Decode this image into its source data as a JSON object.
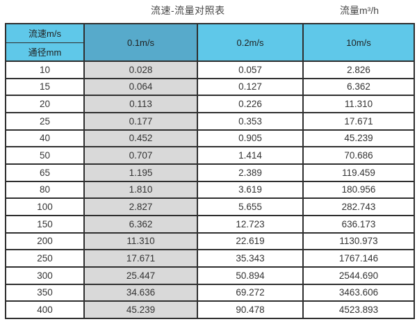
{
  "header": {
    "table_title": "流速-流量对照表",
    "unit_label": "流量m³/h"
  },
  "table": {
    "corner_top": "流速m/s",
    "corner_bottom": "通径mm",
    "columns": [
      "0.1m/s",
      "0.2m/s",
      "10m/s"
    ],
    "rows": [
      [
        "10",
        "0.028",
        "0.057",
        "2.826"
      ],
      [
        "15",
        "0.064",
        "0.127",
        "6.362"
      ],
      [
        "20",
        "0.113",
        "0.226",
        "11.310"
      ],
      [
        "25",
        "0.177",
        "0.353",
        "17.671"
      ],
      [
        "40",
        "0.452",
        "0.905",
        "45.239"
      ],
      [
        "50",
        "0.707",
        "1.414",
        "70.686"
      ],
      [
        "65",
        "1.195",
        "2.389",
        "119.459"
      ],
      [
        "80",
        "1.810",
        "3.619",
        "180.956"
      ],
      [
        "100",
        "2.827",
        "5.655",
        "282.743"
      ],
      [
        "150",
        "6.362",
        "12.723",
        "636.173"
      ],
      [
        "200",
        "11.310",
        "22.619",
        "1130.973"
      ],
      [
        "250",
        "17.671",
        "35.343",
        "1767.146"
      ],
      [
        "300",
        "25.447",
        "50.894",
        "2544.690"
      ],
      [
        "350",
        "34.636",
        "69.272",
        "3463.606"
      ],
      [
        "400",
        "45.239",
        "90.478",
        "4523.893"
      ]
    ]
  },
  "colors": {
    "header_blue": "#5fc8e9",
    "header_blue_dark": "#57aacb",
    "highlight_column_gray": "#d9d9d9",
    "border": "#2e2e2e",
    "background": "#ffffff"
  }
}
